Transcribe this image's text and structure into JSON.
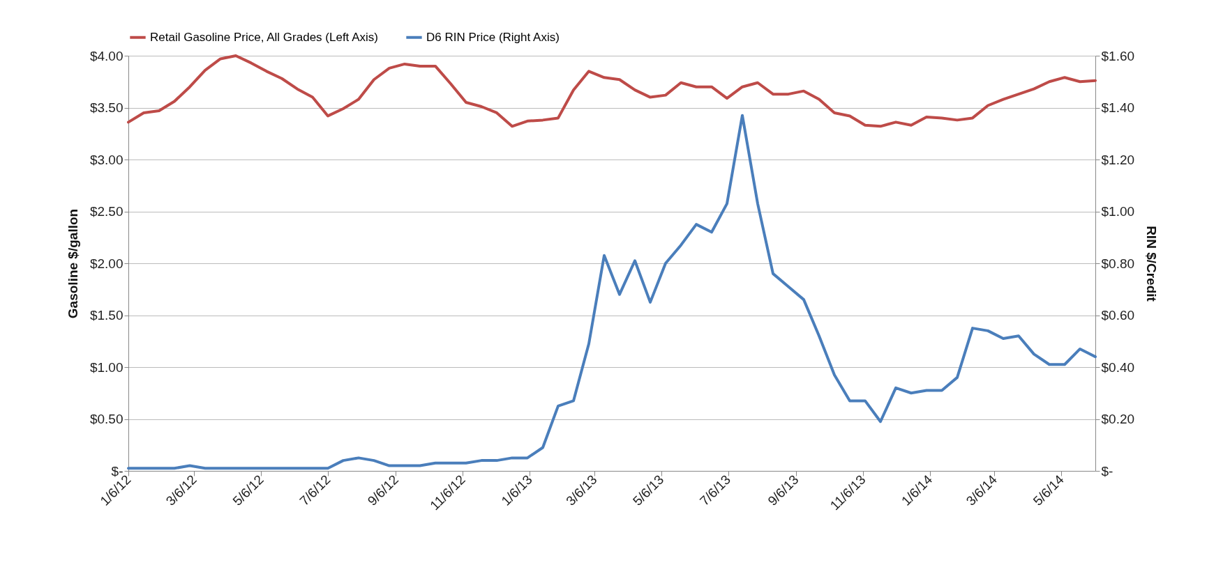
{
  "chart_data": {
    "type": "line",
    "ylabel": "Gasoline $/gallon",
    "y2label": "RIN $/Credit",
    "legend": "top",
    "grid": "y",
    "x": [
      "2012-01-06",
      "2012-01-20",
      "2012-02-03",
      "2012-02-17",
      "2012-03-02",
      "2012-03-16",
      "2012-03-30",
      "2012-04-13",
      "2012-04-27",
      "2012-05-11",
      "2012-05-25",
      "2012-06-08",
      "2012-06-22",
      "2012-07-06",
      "2012-07-20",
      "2012-08-03",
      "2012-08-17",
      "2012-08-31",
      "2012-09-14",
      "2012-09-28",
      "2012-10-12",
      "2012-10-26",
      "2012-11-09",
      "2012-11-23",
      "2012-12-07",
      "2012-12-21",
      "2013-01-04",
      "2013-01-18",
      "2013-02-01",
      "2013-02-15",
      "2013-03-01",
      "2013-03-15",
      "2013-03-29",
      "2013-04-12",
      "2013-04-26",
      "2013-05-10",
      "2013-05-24",
      "2013-06-07",
      "2013-06-21",
      "2013-07-05",
      "2013-07-19",
      "2013-08-02",
      "2013-08-16",
      "2013-08-30",
      "2013-09-13",
      "2013-09-27",
      "2013-10-11",
      "2013-10-25",
      "2013-11-08",
      "2013-11-22",
      "2013-12-06",
      "2013-12-20",
      "2014-01-03",
      "2014-01-17",
      "2014-01-31",
      "2014-02-14",
      "2014-02-28",
      "2014-03-14",
      "2014-03-28",
      "2014-04-11",
      "2014-04-25",
      "2014-05-09",
      "2014-05-23",
      "2014-06-06"
    ],
    "xlim": [
      "2012-01-06",
      "2014-06-06"
    ],
    "xticks": [
      {
        "value": "2012-01-06",
        "label": "1/6/12"
      },
      {
        "value": "2012-03-06",
        "label": "3/6/12"
      },
      {
        "value": "2012-05-06",
        "label": "5/6/12"
      },
      {
        "value": "2012-07-06",
        "label": "7/6/12"
      },
      {
        "value": "2012-09-06",
        "label": "9/6/12"
      },
      {
        "value": "2012-11-06",
        "label": "11/6/12"
      },
      {
        "value": "2013-01-06",
        "label": "1/6/13"
      },
      {
        "value": "2013-03-06",
        "label": "3/6/13"
      },
      {
        "value": "2013-05-06",
        "label": "5/6/13"
      },
      {
        "value": "2013-07-06",
        "label": "7/6/13"
      },
      {
        "value": "2013-09-06",
        "label": "9/6/13"
      },
      {
        "value": "2013-11-06",
        "label": "11/6/13"
      },
      {
        "value": "2014-01-06",
        "label": "1/6/14"
      },
      {
        "value": "2014-03-06",
        "label": "3/6/14"
      },
      {
        "value": "2014-05-06",
        "label": "5/6/14"
      }
    ],
    "ylim": [
      0,
      4
    ],
    "yticks": [
      {
        "value": 0,
        "label": "$-"
      },
      {
        "value": 0.5,
        "label": "$0.50"
      },
      {
        "value": 1,
        "label": "$1.00"
      },
      {
        "value": 1.5,
        "label": "$1.50"
      },
      {
        "value": 2,
        "label": "$2.00"
      },
      {
        "value": 2.5,
        "label": "$2.50"
      },
      {
        "value": 3,
        "label": "$3.00"
      },
      {
        "value": 3.5,
        "label": "$3.50"
      },
      {
        "value": 4,
        "label": "$4.00"
      }
    ],
    "y2lim": [
      0,
      1.6
    ],
    "y2ticks": [
      {
        "value": 0,
        "label": "$-"
      },
      {
        "value": 0.2,
        "label": "$0.20"
      },
      {
        "value": 0.4,
        "label": "$0.40"
      },
      {
        "value": 0.6,
        "label": "$0.60"
      },
      {
        "value": 0.8,
        "label": "$0.80"
      },
      {
        "value": 1,
        "label": "$1.00"
      },
      {
        "value": 1.2,
        "label": "$1.20"
      },
      {
        "value": 1.4,
        "label": "$1.40"
      },
      {
        "value": 1.6,
        "label": "$1.60"
      }
    ],
    "series": [
      {
        "name": "Retail Gasoline Price, All Grades (Left Axis)",
        "color": "#be4b48",
        "values": [
          3.36,
          3.45,
          3.47,
          3.56,
          3.7,
          3.86,
          3.97,
          4.0,
          3.93,
          3.85,
          3.78,
          3.68,
          3.6,
          3.42,
          3.49,
          3.58,
          3.77,
          3.88,
          3.92,
          3.9,
          3.9,
          3.73,
          3.55,
          3.51,
          3.45,
          3.32,
          3.37,
          3.38,
          3.4,
          3.67,
          3.85,
          3.79,
          3.77,
          3.67,
          3.6,
          3.62,
          3.74,
          3.7,
          3.7,
          3.59,
          3.7,
          3.74,
          3.63,
          3.63,
          3.66,
          3.58,
          3.45,
          3.42,
          3.33,
          3.32,
          3.36,
          3.33,
          3.41,
          3.4,
          3.38,
          3.4,
          3.52,
          3.58,
          3.63,
          3.68,
          3.75,
          3.79,
          3.75,
          3.76
        ]
      },
      {
        "name": "D6 RIN Price (Right Axis)",
        "color": "#4a7ebb",
        "axis": "y2",
        "values": [
          0.01,
          0.01,
          0.01,
          0.01,
          0.02,
          0.01,
          0.01,
          0.01,
          0.01,
          0.01,
          0.01,
          0.01,
          0.01,
          0.01,
          0.04,
          0.05,
          0.04,
          0.02,
          0.02,
          0.02,
          0.03,
          0.03,
          0.03,
          0.04,
          0.04,
          0.05,
          0.05,
          0.09,
          0.25,
          0.27,
          0.49,
          0.83,
          0.68,
          0.81,
          0.65,
          0.8,
          0.87,
          0.95,
          0.92,
          1.03,
          1.37,
          1.03,
          0.76,
          0.71,
          0.66,
          0.52,
          0.37,
          0.27,
          0.27,
          0.19,
          0.32,
          0.3,
          0.31,
          0.31,
          0.36,
          0.55,
          0.54,
          0.51,
          0.52,
          0.45,
          0.41,
          0.41,
          0.47,
          0.44
        ]
      }
    ]
  }
}
